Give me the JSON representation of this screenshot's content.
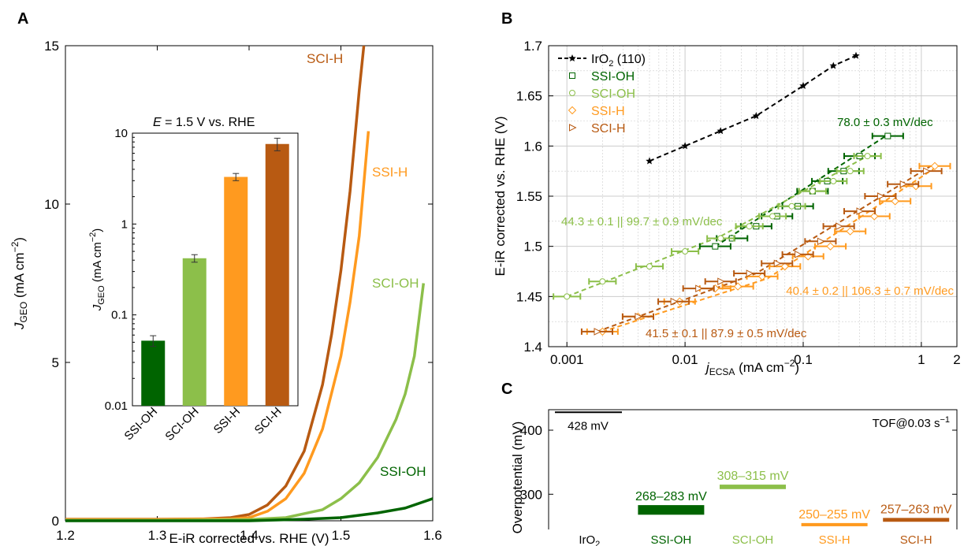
{
  "colors": {
    "ssi_oh": "#006400",
    "sci_oh": "#8cbf4a",
    "ssi_h": "#ff9a1f",
    "sci_h": "#b85a12",
    "iro2": "#000000",
    "grid": "#cccccc"
  },
  "chart_data": [
    {
      "panel": "A",
      "type": "line",
      "xlabel": "E-iR corrected vs. RHE (V)",
      "ylabel_main": "J",
      "ylabel_sub": "GEO",
      "ylabel_unit": " (mA cm",
      "ylabel_exp": "−2",
      "ylabel_close": ")",
      "xlim": [
        1.2,
        1.6
      ],
      "ylim": [
        0,
        15
      ],
      "xticks": [
        1.2,
        1.3,
        1.4,
        1.5,
        1.6
      ],
      "xticklabels": [
        "1.2",
        "1.3",
        "1.4",
        "1.5",
        "1.6"
      ],
      "yticks": [
        0,
        5,
        10,
        15
      ],
      "yticklabels": [
        "0",
        "5",
        "10",
        "15"
      ],
      "series": [
        {
          "name": "SCI-H",
          "color_key": "sci_h",
          "x": [
            1.2,
            1.3,
            1.35,
            1.38,
            1.4,
            1.42,
            1.44,
            1.46,
            1.48,
            1.49,
            1.5,
            1.51,
            1.52,
            1.525
          ],
          "y": [
            0.05,
            0.05,
            0.06,
            0.1,
            0.2,
            0.5,
            1.1,
            2.2,
            4.3,
            5.9,
            7.9,
            10.4,
            13.6,
            15.0
          ]
        },
        {
          "name": "SSI-H",
          "color_key": "ssi_h",
          "x": [
            1.2,
            1.3,
            1.38,
            1.4,
            1.42,
            1.44,
            1.46,
            1.48,
            1.5,
            1.51,
            1.52,
            1.53
          ],
          "y": [
            0.04,
            0.04,
            0.06,
            0.1,
            0.3,
            0.7,
            1.5,
            2.9,
            5.2,
            6.9,
            9.0,
            12.3
          ]
        },
        {
          "name": "SCI-OH",
          "color_key": "sci_oh",
          "x": [
            1.2,
            1.3,
            1.4,
            1.44,
            1.48,
            1.5,
            1.52,
            1.54,
            1.56,
            1.57,
            1.58,
            1.59
          ],
          "y": [
            0.02,
            0.02,
            0.04,
            0.1,
            0.35,
            0.7,
            1.2,
            2.0,
            3.2,
            4.0,
            5.2,
            7.5
          ]
        },
        {
          "name": "SSI-OH",
          "color_key": "ssi_oh",
          "x": [
            1.2,
            1.3,
            1.4,
            1.46,
            1.5,
            1.54,
            1.57,
            1.6
          ],
          "y": [
            0.0,
            0.0,
            0.0,
            0.05,
            0.1,
            0.25,
            0.4,
            0.7
          ]
        }
      ],
      "labels": [
        {
          "text": "SCI-H",
          "color_key": "sci_h"
        },
        {
          "text": "SSI-H",
          "color_key": "ssi_h"
        },
        {
          "text": "SCI-OH",
          "color_key": "sci_oh"
        },
        {
          "text": "SSI-OH",
          "color_key": "ssi_oh"
        }
      ]
    },
    {
      "panel": "A-inset",
      "type": "bar",
      "title": "E = 1.5 V vs. RHE",
      "title_italic": "E",
      "title_rest": " = 1.5 V vs. RHE",
      "ylabel_main": "J",
      "ylabel_sub": "GEO",
      "ylabel_unit": " (mA cm",
      "ylabel_exp": "−2",
      "ylabel_close": ")",
      "yscale": "log",
      "ylim": [
        0.01,
        10
      ],
      "yticks": [
        0.01,
        0.1,
        1,
        10
      ],
      "yticklabels": [
        "0.01",
        "0.1",
        "1",
        "10"
      ],
      "categories": [
        "SSI-OH",
        "SCI-OH",
        "SSI-H",
        "SCI-H"
      ],
      "color_keys": [
        "ssi_oh",
        "sci_oh",
        "ssi_h",
        "sci_h"
      ],
      "values": [
        0.052,
        0.42,
        3.3,
        7.6
      ],
      "errors": [
        0.007,
        0.04,
        0.3,
        1.2
      ]
    },
    {
      "panel": "B",
      "type": "scatter",
      "xlabel_main": "j",
      "xlabel_sub": "ECSA",
      "xlabel_unit": " (mA cm",
      "xlabel_exp": "−2",
      "xlabel_close": ")",
      "ylabel": "E-iR corrected vs. RHE (V)",
      "xscale": "log",
      "xlim": [
        0.0007,
        2
      ],
      "ylim": [
        1.4,
        1.7
      ],
      "xticks": [
        0.001,
        0.01,
        0.1,
        1,
        2
      ],
      "xticklabels": [
        "0.001",
        "0.01",
        "0.1",
        "1",
        "2"
      ],
      "yticks": [
        1.4,
        1.45,
        1.5,
        1.55,
        1.6,
        1.65,
        1.7
      ],
      "yticklabels": [
        "1.4",
        "1.45",
        "1.5",
        "1.55",
        "1.6",
        "1.65",
        "1.7"
      ],
      "legend": [
        {
          "name_main": "IrO",
          "name_sub": "2",
          "name_rest": " (110)",
          "marker": "star",
          "color_key": "iro2"
        },
        {
          "name_main": "SSI-OH",
          "name_sub": "",
          "name_rest": "",
          "marker": "square",
          "color_key": "ssi_oh"
        },
        {
          "name_main": "SCI-OH",
          "name_sub": "",
          "name_rest": "",
          "marker": "circle",
          "color_key": "sci_oh"
        },
        {
          "name_main": "SSI-H",
          "name_sub": "",
          "name_rest": "",
          "marker": "diamond",
          "color_key": "ssi_h"
        },
        {
          "name_main": "SCI-H",
          "name_sub": "",
          "name_rest": "",
          "marker": "triangle",
          "color_key": "sci_h"
        }
      ],
      "series": [
        {
          "name": "IrO2 (110)",
          "marker": "star",
          "color_key": "iro2",
          "x": [
            0.005,
            0.01,
            0.02,
            0.04,
            0.1,
            0.18,
            0.28
          ],
          "y": [
            1.585,
            1.6,
            1.615,
            1.63,
            1.66,
            1.68,
            1.69
          ],
          "xerr_factor": 1.0
        },
        {
          "name": "SSI-OH",
          "marker": "square",
          "color_key": "ssi_oh",
          "x": [
            0.018,
            0.025,
            0.04,
            0.06,
            0.09,
            0.12,
            0.16,
            0.22,
            0.3,
            0.52
          ],
          "y": [
            1.5,
            1.508,
            1.52,
            1.53,
            1.54,
            1.555,
            1.565,
            1.575,
            1.59,
            1.61
          ],
          "xerr_factor": 1.35
        },
        {
          "name": "SCI-OH",
          "marker": "circle",
          "color_key": "sci_oh",
          "x": [
            0.001,
            0.002,
            0.005,
            0.01,
            0.02,
            0.035,
            0.055,
            0.08,
            0.12,
            0.18,
            0.25,
            0.35
          ],
          "y": [
            1.45,
            1.465,
            1.48,
            1.495,
            1.508,
            1.52,
            1.53,
            1.54,
            1.555,
            1.565,
            1.575,
            1.59
          ],
          "xerr_factor": 1.3
        },
        {
          "name": "SSI-H",
          "marker": "diamond",
          "color_key": "ssi_h",
          "x": [
            0.002,
            0.004,
            0.009,
            0.018,
            0.028,
            0.045,
            0.07,
            0.11,
            0.17,
            0.25,
            0.4,
            0.6,
            0.9,
            1.3
          ],
          "y": [
            1.415,
            1.43,
            1.445,
            1.458,
            1.46,
            1.47,
            1.48,
            1.49,
            1.5,
            1.515,
            1.53,
            1.545,
            1.56,
            1.58
          ],
          "xerr_factor": 1.35
        },
        {
          "name": "SCI-H",
          "marker": "triangle",
          "color_key": "sci_h",
          "x": [
            0.0018,
            0.004,
            0.008,
            0.013,
            0.02,
            0.035,
            0.06,
            0.09,
            0.14,
            0.2,
            0.3,
            0.45,
            0.7,
            1.1
          ],
          "y": [
            1.415,
            1.43,
            1.445,
            1.458,
            1.465,
            1.473,
            1.483,
            1.492,
            1.505,
            1.52,
            1.535,
            1.55,
            1.562,
            1.575
          ],
          "xerr_factor": 1.35
        }
      ],
      "fits": [
        {
          "color_key": "iro2",
          "x": [
            0.005,
            0.01,
            0.02,
            0.04,
            0.1,
            0.18,
            0.28
          ],
          "y": [
            1.585,
            1.6,
            1.615,
            1.63,
            1.66,
            1.68,
            1.69
          ]
        },
        {
          "color_key": "ssi_oh",
          "x": [
            0.018,
            0.5
          ],
          "y": [
            1.5,
            1.61
          ]
        },
        {
          "color_key": "sci_oh",
          "x": [
            0.001,
            0.02,
            0.35
          ],
          "y": [
            1.45,
            1.51,
            1.59
          ]
        },
        {
          "color_key": "ssi_h",
          "x": [
            0.002,
            0.05,
            1.3
          ],
          "y": [
            1.415,
            1.468,
            1.578
          ]
        },
        {
          "color_key": "sci_h",
          "x": [
            0.0018,
            0.04,
            1.2
          ],
          "y": [
            1.415,
            1.473,
            1.58
          ]
        }
      ],
      "annotations": [
        {
          "text": "78.0 ± 0.3 mV/dec",
          "color_key": "ssi_oh"
        },
        {
          "text": "44.3 ± 0.1 || 99.7 ± 0.9 mV/dec",
          "color_key": "sci_oh"
        },
        {
          "text": "40.4 ± 0.2 || 106.3 ± 0.7 mV/dec",
          "color_key": "ssi_h"
        },
        {
          "text": "41.5 ± 0.1 || 87.9 ± 0.5 mV/dec",
          "color_key": "sci_h"
        }
      ]
    },
    {
      "panel": "C",
      "type": "bar",
      "ylabel": "Overpotential (mV)",
      "ylim": [
        245,
        432
      ],
      "yticks": [
        300,
        400
      ],
      "yticklabels": [
        "300",
        "400"
      ],
      "note": "TOF@0.03 s",
      "note_exp": "−1",
      "categories": [
        {
          "main": "IrO",
          "sub": "2"
        },
        {
          "main": "SSI-OH",
          "sub": ""
        },
        {
          "main": "SCI-OH",
          "sub": ""
        },
        {
          "main": "SSI-H",
          "sub": ""
        },
        {
          "main": "SCI-H",
          "sub": ""
        }
      ],
      "category_color_keys": [
        "iro2",
        "ssi_oh",
        "sci_oh",
        "ssi_h",
        "sci_h"
      ],
      "ranges": [
        {
          "low": 428,
          "high": 428,
          "label": "428 mV",
          "color_key": "iro2"
        },
        {
          "low": 268,
          "high": 283,
          "label": "268–283 mV",
          "color_key": "ssi_oh"
        },
        {
          "low": 308,
          "high": 315,
          "label": "308–315 mV",
          "color_key": "sci_oh"
        },
        {
          "low": 250,
          "high": 255,
          "label": "250–255 mV",
          "color_key": "ssi_h"
        },
        {
          "low": 257,
          "high": 263,
          "label": "257–263 mV",
          "color_key": "sci_h"
        }
      ]
    }
  ],
  "panel_labels": [
    "A",
    "B",
    "C"
  ]
}
